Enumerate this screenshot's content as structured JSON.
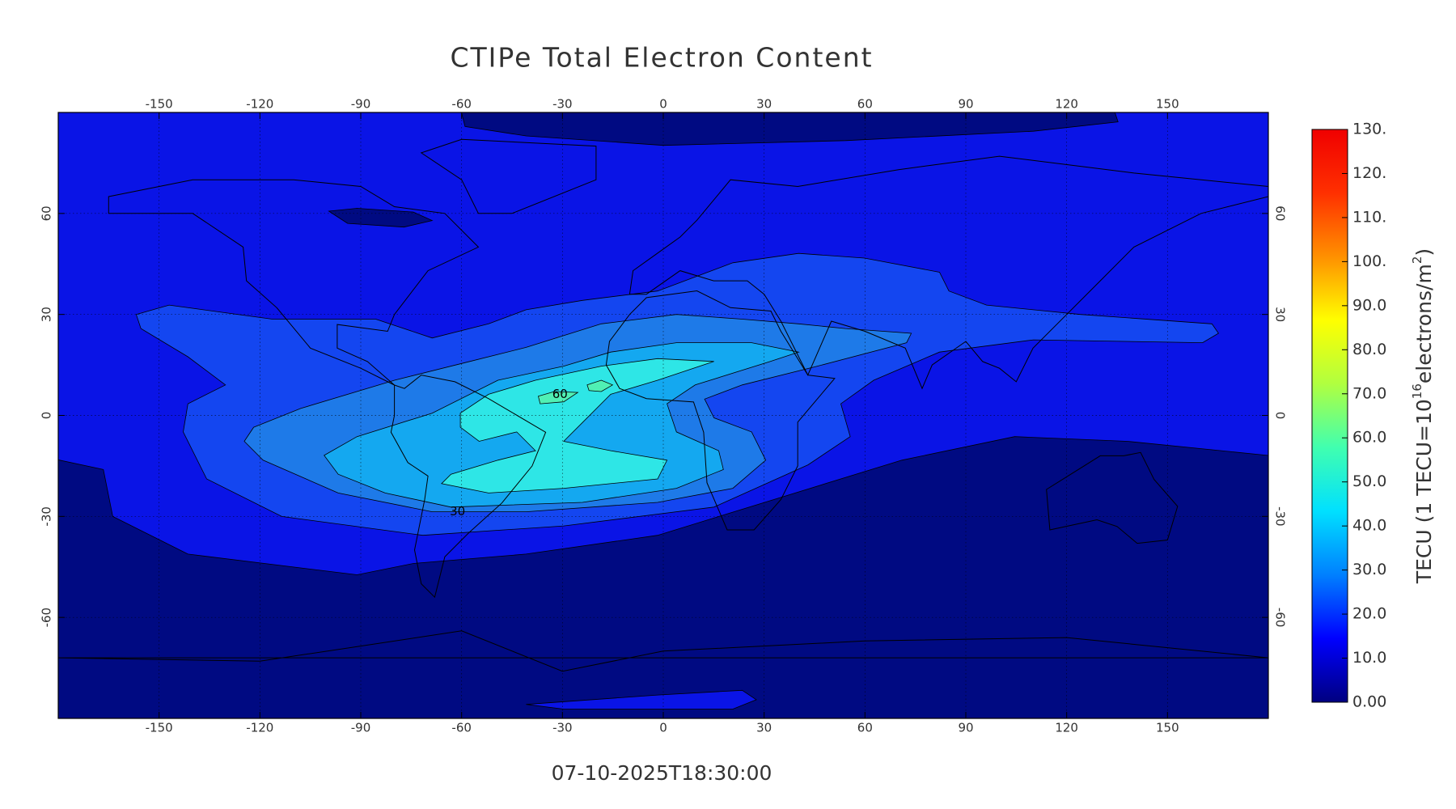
{
  "chart_data": {
    "type": "contour-map",
    "title": "CTIPe Total Electron Content",
    "subtitle": "07-10-2025T18:30:00",
    "xlim": [
      -180,
      180
    ],
    "ylim": [
      -90,
      90
    ],
    "xticks": [
      -150,
      -120,
      -90,
      -60,
      -30,
      0,
      30,
      60,
      90,
      120,
      150
    ],
    "yticks": [
      -60,
      -30,
      0,
      30,
      60
    ],
    "grid": true,
    "contours": [
      {
        "level": 0,
        "color": "#000a82"
      },
      {
        "level": 10,
        "color": "#0a14e6"
      },
      {
        "level": 20,
        "color": "#1446f0"
      },
      {
        "level": 30,
        "color": "#1e7ae8"
      },
      {
        "level": 40,
        "color": "#14a8f0"
      },
      {
        "level": 50,
        "color": "#2ee6e6"
      },
      {
        "level": 60,
        "color": "#50f0b4"
      }
    ],
    "contour_labels": [
      {
        "text": "60",
        "level": 60
      },
      {
        "text": "30",
        "level": 30
      }
    ],
    "colorbar": {
      "lim": [
        0,
        130
      ],
      "colormap": [
        "#000080",
        "#0000ff",
        "#0080ff",
        "#00e0ff",
        "#40ffb0",
        "#b0ff40",
        "#ffff00",
        "#ff9000",
        "#ff3000",
        "#f00000"
      ],
      "ticks": [
        {
          "value": 0,
          "label": "0.00"
        },
        {
          "value": 10,
          "label": "10.0"
        },
        {
          "value": 20,
          "label": "20.0"
        },
        {
          "value": 30,
          "label": "30.0"
        },
        {
          "value": 40,
          "label": "40.0"
        },
        {
          "value": 50,
          "label": "50.0"
        },
        {
          "value": 60,
          "label": "60.0"
        },
        {
          "value": 70,
          "label": "70.0"
        },
        {
          "value": 80,
          "label": "80.0"
        },
        {
          "value": 90,
          "label": "90.0"
        },
        {
          "value": 100,
          "label": "100."
        },
        {
          "value": 110,
          "label": "110."
        },
        {
          "value": 120,
          "label": "120."
        },
        {
          "value": 130,
          "label": "130."
        }
      ],
      "label": [
        "TECU (1 TECU=10",
        "16",
        "electrons/m",
        "2",
        ")"
      ]
    }
  }
}
